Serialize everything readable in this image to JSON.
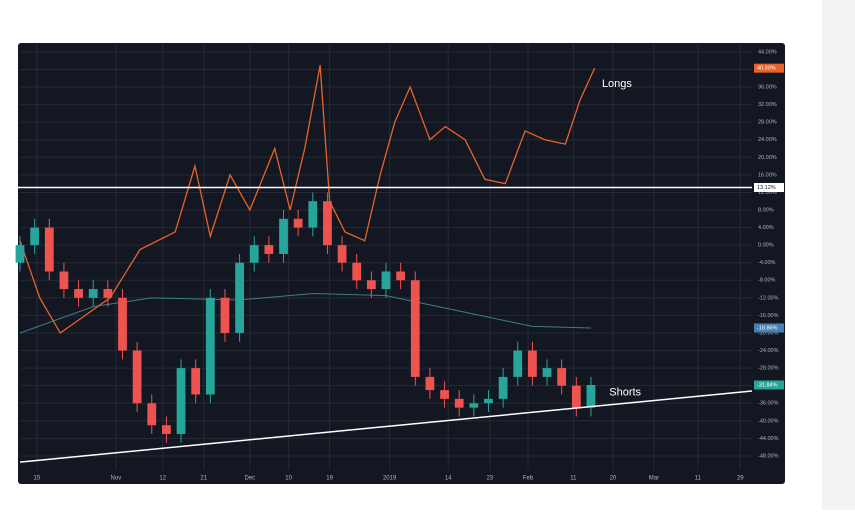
{
  "chart_data": {
    "type": "candlestick",
    "xlim": [
      0,
      100
    ],
    "ylim": [
      -51.2,
      45.8
    ],
    "grid": true,
    "up_color": "#26a69a",
    "down_color": "#ef5350",
    "xticks": [
      {
        "value": 2.3,
        "label": "15"
      },
      {
        "value": 13.1,
        "label": "Nov"
      },
      {
        "value": 19.5,
        "label": "12"
      },
      {
        "value": 25.1,
        "label": "21"
      },
      {
        "value": 31.4,
        "label": "Dec"
      },
      {
        "value": 36.7,
        "label": "10"
      },
      {
        "value": 42.3,
        "label": "19"
      },
      {
        "value": 50.5,
        "label": "2019"
      },
      {
        "value": 58.5,
        "label": "14"
      },
      {
        "value": 64.2,
        "label": "23"
      },
      {
        "value": 69.4,
        "label": "Feb"
      },
      {
        "value": 75.6,
        "label": "11"
      },
      {
        "value": 81.0,
        "label": "20"
      },
      {
        "value": 86.6,
        "label": "Mar"
      },
      {
        "value": 92.6,
        "label": "11"
      },
      {
        "value": 98.4,
        "label": "29"
      }
    ],
    "yticks": [
      {
        "value": 44,
        "label": "44.00%"
      },
      {
        "value": 40,
        "label": "40.00%"
      },
      {
        "value": 36,
        "label": "36.00%"
      },
      {
        "value": 32,
        "label": "32.00%"
      },
      {
        "value": 28,
        "label": "28.00%"
      },
      {
        "value": 24,
        "label": "24.00%"
      },
      {
        "value": 20,
        "label": "20.00%"
      },
      {
        "value": 16,
        "label": "16.00%"
      },
      {
        "value": 12,
        "label": "12.00%"
      },
      {
        "value": 8,
        "label": "8.00%"
      },
      {
        "value": 4,
        "label": "4.00%"
      },
      {
        "value": 0,
        "label": "0.00%"
      },
      {
        "value": -4,
        "label": "-4.00%"
      },
      {
        "value": -8,
        "label": "-8.00%"
      },
      {
        "value": -12,
        "label": "-12.00%"
      },
      {
        "value": -16,
        "label": "-16.00%"
      },
      {
        "value": -20,
        "label": "-20.00%"
      },
      {
        "value": -24,
        "label": "-24.00%"
      },
      {
        "value": -28,
        "label": "-28.00%"
      },
      {
        "value": -32,
        "label": "-32.00%"
      },
      {
        "value": -36,
        "label": "-36.00%"
      },
      {
        "value": -40,
        "label": "-40.00%"
      },
      {
        "value": -44,
        "label": "-44.00%"
      },
      {
        "value": -48,
        "label": "-48.00%"
      }
    ],
    "x": [
      0,
      2,
      4,
      6,
      8,
      10,
      12,
      14,
      16,
      18,
      20,
      22,
      24,
      26,
      28,
      30,
      32,
      34,
      36,
      38,
      40,
      42,
      44,
      46,
      48,
      50,
      52,
      54,
      56,
      58,
      60,
      62,
      64,
      66,
      68,
      70,
      72,
      74,
      76,
      78
    ],
    "open": [
      -4,
      0,
      4,
      -6,
      -10,
      -12,
      -10,
      -12,
      -24,
      -36,
      -41,
      -43,
      -28,
      -34,
      -12,
      -20,
      -4,
      0,
      -2,
      6,
      4,
      10,
      0,
      -4,
      -8,
      -10,
      -6,
      -8,
      -30,
      -33,
      -35,
      -37,
      -36,
      -35,
      -30,
      -24,
      -30,
      -28,
      -32,
      -37
    ],
    "high": [
      2,
      6,
      6,
      -4,
      -8,
      -8,
      -8,
      -10,
      -22,
      -34,
      -39,
      -26,
      -26,
      -10,
      -10,
      -2,
      2,
      2,
      8,
      8,
      12,
      12,
      2,
      -2,
      -6,
      -4,
      -4,
      -6,
      -28,
      -31,
      -33,
      -34,
      -33,
      -28,
      -22,
      -22,
      -26,
      -26,
      -30,
      -30
    ],
    "low": [
      -6,
      -2,
      -8,
      -12,
      -14,
      -14,
      -14,
      -26,
      -38,
      -43,
      -45,
      -45,
      -36,
      -36,
      -22,
      -22,
      -6,
      -4,
      -4,
      2,
      2,
      -2,
      -6,
      -10,
      -12,
      -12,
      -10,
      -32,
      -35,
      -37,
      -39,
      -39,
      -38,
      -37,
      -32,
      -32,
      -32,
      -34,
      -39,
      -39
    ],
    "close": [
      0,
      4,
      -6,
      -10,
      -12,
      -10,
      -12,
      -24,
      -36,
      -41,
      -43,
      -28,
      -34,
      -12,
      -20,
      -4,
      0,
      -2,
      6,
      4,
      10,
      0,
      -4,
      -8,
      -10,
      -6,
      -8,
      -30,
      -33,
      -35,
      -37,
      -36,
      -35,
      -30,
      -24,
      -30,
      -28,
      -32,
      -37,
      -31.84
    ],
    "close_label": "-31.84%",
    "series": [
      {
        "name": "Longs",
        "color": "#e8622a",
        "x": [
          0,
          2.7,
          5.5,
          12.3,
          16.4,
          21.2,
          23.9,
          26,
          28.7,
          31.4,
          34.8,
          36.9,
          38.9,
          41,
          42.3,
          44.4,
          47.1,
          49.2,
          51.2,
          53.3,
          56,
          58.1,
          60.8,
          63.5,
          66.3,
          69,
          71.7,
          74.5,
          76.5,
          78.5
        ],
        "values": [
          1,
          -12,
          -20,
          -12,
          -1,
          3,
          18,
          2,
          16,
          8,
          22,
          8,
          22,
          41,
          10,
          3,
          1,
          16,
          28,
          36,
          24,
          27,
          24,
          15,
          14,
          26,
          24,
          23,
          33,
          40.3
        ],
        "value_label": "40.30%"
      }
    ],
    "moving_average": {
      "color": "#3d7f86",
      "x": [
        0,
        10,
        18,
        30,
        40,
        50,
        60,
        70,
        78
      ],
      "values": [
        -20,
        -14,
        -12,
        -12.5,
        -11,
        -11.5,
        -15,
        -18.5,
        -18.86
      ],
      "value_label": "-18.86%",
      "label_color": "#4a7fb5"
    },
    "level": {
      "value": 13.12,
      "label": "13.12%",
      "color": "#ffffff"
    },
    "trendline": {
      "x": [
        0,
        100
      ],
      "values": [
        -49.4,
        -33.2
      ],
      "color": "#ffffff"
    },
    "annotations": [
      {
        "text": "Longs",
        "x": 79.5,
        "y": 36.7
      },
      {
        "text": "Shorts",
        "x": 80.5,
        "y": -33.6
      }
    ]
  }
}
